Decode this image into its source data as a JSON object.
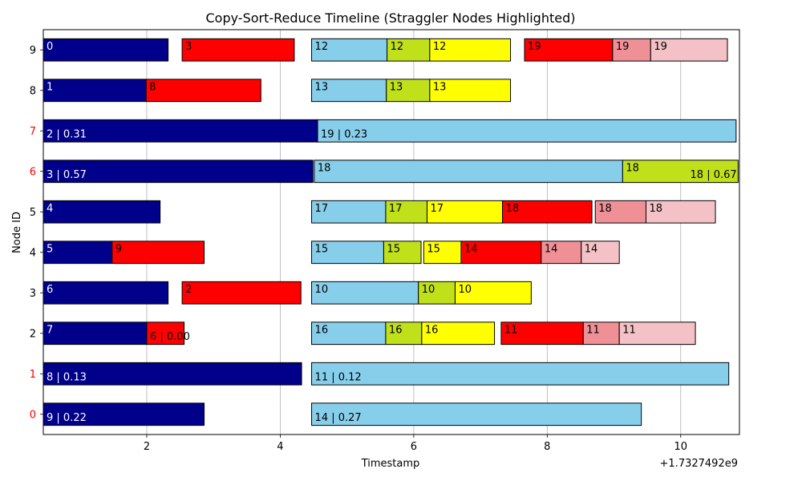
{
  "chart_data": {
    "type": "bar",
    "orientation": "horizontal",
    "title": "Copy-Sort-Reduce Timeline (Straggler Nodes Highlighted)",
    "xlabel": "Timestamp",
    "ylabel": "Node ID",
    "x_offset_label": "+1.7327492e9",
    "xlim": [
      0.45,
      10.88
    ],
    "xticks": [
      2,
      4,
      6,
      8,
      10
    ],
    "grid": "x",
    "categories": [
      "0",
      "1",
      "2",
      "3",
      "4",
      "5",
      "6",
      "7",
      "8",
      "9"
    ],
    "straggler_nodes": [
      "0",
      "1",
      "6",
      "7"
    ],
    "straggler_color": "#ff0000",
    "normal_tick_color": "#000000",
    "phase_colors": {
      "copy": "#00008b",
      "sort": "#ff0000",
      "reduce": "#87ceeb",
      "stage2": "#c0e01a",
      "stage3": "#ffff00",
      "stage4": "#ff0000",
      "stage5": "#ef9096",
      "stage6": "#f4c2c6"
    },
    "bars": [
      {
        "node": "0",
        "phase": "copy",
        "start": 0.45,
        "end": 2.86,
        "label": "9 | 0.22"
      },
      {
        "node": "0",
        "phase": "reduce",
        "start": 4.47,
        "end": 9.41,
        "label": "14 | 0.27"
      },
      {
        "node": "1",
        "phase": "copy",
        "start": 0.45,
        "end": 4.32,
        "label": "8 | 0.13"
      },
      {
        "node": "1",
        "phase": "reduce",
        "start": 4.47,
        "end": 10.72,
        "label": "11 | 0.12"
      },
      {
        "node": "2",
        "phase": "copy",
        "start": 0.45,
        "end": 2.0,
        "label": "7"
      },
      {
        "node": "2",
        "phase": "sort",
        "start": 2.0,
        "end": 2.56,
        "label": "6 | 0.00"
      },
      {
        "node": "2",
        "phase": "reduce",
        "start": 4.47,
        "end": 5.58,
        "label": "16"
      },
      {
        "node": "2",
        "phase": "stage2",
        "start": 5.58,
        "end": 6.12,
        "label": "16"
      },
      {
        "node": "2",
        "phase": "stage3",
        "start": 6.12,
        "end": 7.21,
        "label": "16"
      },
      {
        "node": "2",
        "phase": "stage4",
        "start": 7.31,
        "end": 8.54,
        "label": "11"
      },
      {
        "node": "2",
        "phase": "stage5",
        "start": 8.54,
        "end": 9.08,
        "label": "11"
      },
      {
        "node": "2",
        "phase": "stage6",
        "start": 9.08,
        "end": 10.22,
        "label": "11"
      },
      {
        "node": "3",
        "phase": "copy",
        "start": 0.45,
        "end": 2.32,
        "label": "6"
      },
      {
        "node": "3",
        "phase": "sort",
        "start": 2.53,
        "end": 4.31,
        "label": "2"
      },
      {
        "node": "3",
        "phase": "reduce",
        "start": 4.47,
        "end": 6.07,
        "label": "10"
      },
      {
        "node": "3",
        "phase": "stage2",
        "start": 6.07,
        "end": 6.62,
        "label": "10"
      },
      {
        "node": "3",
        "phase": "stage3",
        "start": 6.62,
        "end": 7.76,
        "label": "10"
      },
      {
        "node": "4",
        "phase": "copy",
        "start": 0.45,
        "end": 1.48,
        "label": "5"
      },
      {
        "node": "4",
        "phase": "sort",
        "start": 1.48,
        "end": 2.86,
        "label": "9"
      },
      {
        "node": "4",
        "phase": "reduce",
        "start": 4.47,
        "end": 5.55,
        "label": "15"
      },
      {
        "node": "4",
        "phase": "stage2",
        "start": 5.55,
        "end": 6.11,
        "label": "15"
      },
      {
        "node": "4",
        "phase": "stage3",
        "start": 6.15,
        "end": 6.71,
        "label": "15"
      },
      {
        "node": "4",
        "phase": "stage4",
        "start": 6.71,
        "end": 7.91,
        "label": "14"
      },
      {
        "node": "4",
        "phase": "stage5",
        "start": 7.91,
        "end": 8.51,
        "label": "14"
      },
      {
        "node": "4",
        "phase": "stage6",
        "start": 8.51,
        "end": 9.08,
        "label": "14"
      },
      {
        "node": "5",
        "phase": "copy",
        "start": 0.45,
        "end": 2.2,
        "label": "4"
      },
      {
        "node": "5",
        "phase": "reduce",
        "start": 4.47,
        "end": 5.58,
        "label": "17"
      },
      {
        "node": "5",
        "phase": "stage2",
        "start": 5.58,
        "end": 6.2,
        "label": "17"
      },
      {
        "node": "5",
        "phase": "stage3",
        "start": 6.2,
        "end": 7.33,
        "label": "17"
      },
      {
        "node": "5",
        "phase": "stage4",
        "start": 7.33,
        "end": 8.67,
        "label": "18"
      },
      {
        "node": "5",
        "phase": "stage5",
        "start": 8.72,
        "end": 9.48,
        "label": "18"
      },
      {
        "node": "5",
        "phase": "stage6",
        "start": 9.48,
        "end": 10.52,
        "label": "18"
      },
      {
        "node": "6",
        "phase": "copy",
        "start": 0.45,
        "end": 4.49,
        "label": "3 | 0.57"
      },
      {
        "node": "6",
        "phase": "reduce",
        "start": 4.51,
        "end": 9.13,
        "label": "18"
      },
      {
        "node": "6",
        "phase": "stage2",
        "start": 9.13,
        "end": 10.86,
        "label": "18"
      },
      {
        "node": "7",
        "phase": "copy",
        "start": 0.45,
        "end": 4.56,
        "label": "2 | 0.31"
      },
      {
        "node": "7",
        "phase": "reduce",
        "start": 4.56,
        "end": 10.83,
        "label": "19 | 0.23"
      },
      {
        "node": "8",
        "phase": "copy",
        "start": 0.45,
        "end": 1.99,
        "label": "1"
      },
      {
        "node": "8",
        "phase": "sort",
        "start": 1.99,
        "end": 3.71,
        "label": "8"
      },
      {
        "node": "8",
        "phase": "reduce",
        "start": 4.47,
        "end": 5.59,
        "label": "13"
      },
      {
        "node": "8",
        "phase": "stage2",
        "start": 5.59,
        "end": 6.24,
        "label": "13"
      },
      {
        "node": "8",
        "phase": "stage3",
        "start": 6.24,
        "end": 7.45,
        "label": "13"
      },
      {
        "node": "9",
        "phase": "copy",
        "start": 0.45,
        "end": 2.32,
        "label": "0"
      },
      {
        "node": "9",
        "phase": "sort",
        "start": 2.53,
        "end": 4.21,
        "label": "3"
      },
      {
        "node": "9",
        "phase": "reduce",
        "start": 4.47,
        "end": 5.6,
        "label": "12"
      },
      {
        "node": "9",
        "phase": "stage2",
        "start": 5.6,
        "end": 6.24,
        "label": "12"
      },
      {
        "node": "9",
        "phase": "stage3",
        "start": 6.24,
        "end": 7.45,
        "label": "12"
      },
      {
        "node": "9",
        "phase": "stage4",
        "start": 7.66,
        "end": 8.98,
        "label": "19"
      },
      {
        "node": "9",
        "phase": "stage5",
        "start": 8.98,
        "end": 9.55,
        "label": "19"
      },
      {
        "node": "9",
        "phase": "stage6",
        "start": 9.55,
        "end": 10.7,
        "label": "19"
      }
    ],
    "straggler_value_labels": [
      {
        "node": "6",
        "x": 10.84,
        "label": "18 | 0.67"
      }
    ]
  }
}
